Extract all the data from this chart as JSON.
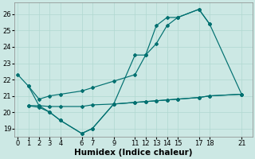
{
  "xlabel": "Humidex (Indice chaleur)",
  "bg_color": "#cce8e4",
  "grid_color": "#b0d8d0",
  "line_color": "#007070",
  "lines": [
    {
      "x": [
        1,
        2,
        3,
        4,
        6,
        7,
        9,
        11,
        12,
        13,
        14,
        15,
        17,
        18
      ],
      "y": [
        21.6,
        20.4,
        20.0,
        19.5,
        18.7,
        19.0,
        20.5,
        23.5,
        23.5,
        25.3,
        25.8,
        25.8,
        26.3,
        25.4
      ]
    },
    {
      "x": [
        0,
        1,
        2,
        3,
        4,
        6,
        7,
        9,
        11,
        12,
        13,
        14,
        15,
        17,
        18,
        21
      ],
      "y": [
        22.3,
        21.6,
        20.8,
        21.0,
        21.1,
        21.3,
        21.5,
        21.9,
        22.3,
        23.5,
        24.2,
        25.3,
        25.8,
        26.3,
        25.4,
        21.1
      ]
    },
    {
      "x": [
        1,
        2,
        3,
        4,
        6,
        7,
        9,
        11,
        12,
        13,
        14,
        15,
        17,
        18,
        21
      ],
      "y": [
        20.4,
        20.4,
        20.35,
        20.35,
        20.35,
        20.45,
        20.5,
        20.6,
        20.65,
        20.7,
        20.75,
        20.8,
        20.9,
        21.0,
        21.1
      ]
    },
    {
      "x": [
        1,
        2,
        3,
        4,
        6,
        7,
        9,
        11,
        12,
        13,
        14,
        15,
        17,
        18,
        21
      ],
      "y": [
        20.4,
        20.3,
        20.0,
        19.5,
        18.7,
        19.0,
        20.5,
        20.6,
        20.65,
        20.7,
        20.75,
        20.8,
        20.9,
        21.0,
        21.1
      ]
    }
  ],
  "xlim": [
    -0.3,
    22
  ],
  "ylim": [
    18.5,
    26.7
  ],
  "xticks": [
    0,
    1,
    2,
    3,
    4,
    6,
    7,
    9,
    11,
    12,
    13,
    14,
    15,
    17,
    18,
    21
  ],
  "yticks": [
    19,
    20,
    21,
    22,
    23,
    24,
    25,
    26
  ],
  "tick_fontsize": 6,
  "xlabel_fontsize": 7.5
}
